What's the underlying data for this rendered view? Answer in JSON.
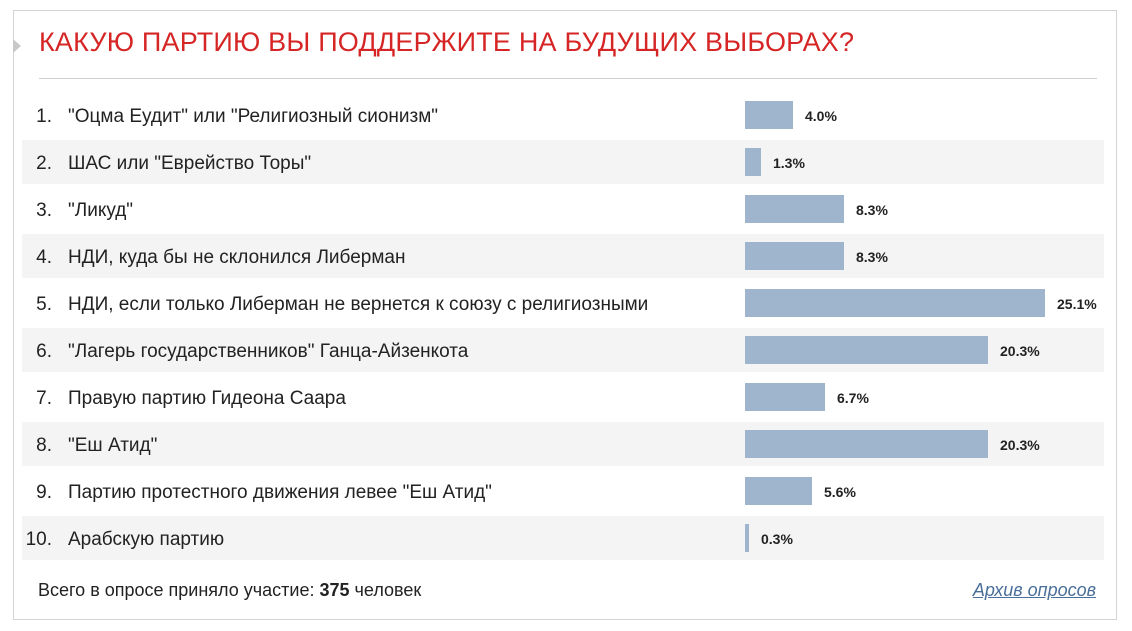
{
  "poll": {
    "title": "КАКУЮ ПАРТИЮ ВЫ ПОДДЕРЖИТЕ НА БУДУЩИХ ВЫБОРАХ?",
    "accent_color": "#d62525",
    "bar_color": "#9fb5cd",
    "scale_max_percent": 25.1,
    "options": [
      {
        "num": "1.",
        "label": "\"Оцма Еудит\" или \"Религиозный сионизм\"",
        "percent": 4.0,
        "percent_label": "4.0%"
      },
      {
        "num": "2.",
        "label": "ШАС или \"Еврейство Торы\"",
        "percent": 1.3,
        "percent_label": "1.3%"
      },
      {
        "num": "3.",
        "label": "\"Ликуд\"",
        "percent": 8.3,
        "percent_label": "8.3%"
      },
      {
        "num": "4.",
        "label": "НДИ, куда бы не склонился Либерман",
        "percent": 8.3,
        "percent_label": "8.3%"
      },
      {
        "num": "5.",
        "label": "НДИ, если только Либерман не вернется к союзу с религиозными",
        "percent": 25.1,
        "percent_label": "25.1%"
      },
      {
        "num": "6.",
        "label": "\"Лагерь государственников\" Ганца-Айзенкота",
        "percent": 20.3,
        "percent_label": "20.3%"
      },
      {
        "num": "7.",
        "label": "Правую партию Гидеона Саара",
        "percent": 6.7,
        "percent_label": "6.7%"
      },
      {
        "num": "8.",
        "label": "\"Еш Атид\"",
        "percent": 20.3,
        "percent_label": "20.3%"
      },
      {
        "num": "9.",
        "label": "Партию протестного движения левее \"Еш Атид\"",
        "percent": 5.6,
        "percent_label": "5.6%"
      },
      {
        "num": "10.",
        "label": "Арабскую партию",
        "percent": 0.3,
        "percent_label": "0.3%"
      }
    ]
  },
  "footer": {
    "participants_prefix": "Всего в опросе приняло участие:",
    "participants_count": "375",
    "participants_suffix": "человек",
    "archive_link": "Архив опросов"
  }
}
